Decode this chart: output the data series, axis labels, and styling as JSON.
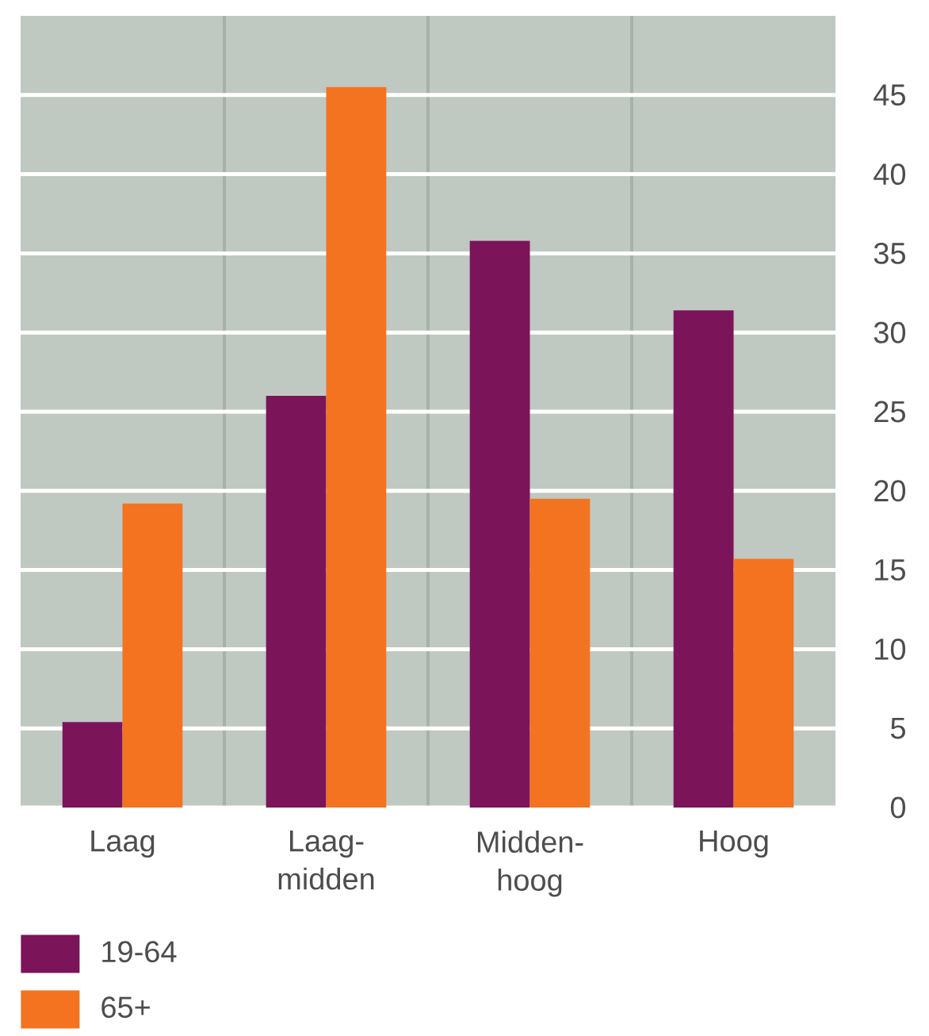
{
  "chart_data": {
    "type": "bar",
    "categories": [
      "Laag",
      "Laag-midden",
      "Midden-hoog",
      "Hoog"
    ],
    "series": [
      {
        "name": "19-64",
        "color": "#7b1459",
        "values": [
          5.4,
          26.0,
          35.8,
          31.4
        ]
      },
      {
        "name": "65+",
        "color": "#f37321",
        "values": [
          19.2,
          45.5,
          19.5,
          15.7
        ]
      }
    ],
    "ylim": [
      0,
      50
    ],
    "yticks": [
      0,
      5,
      10,
      15,
      20,
      25,
      30,
      35,
      40,
      45
    ],
    "grid": true,
    "legend": "bottom left"
  }
}
